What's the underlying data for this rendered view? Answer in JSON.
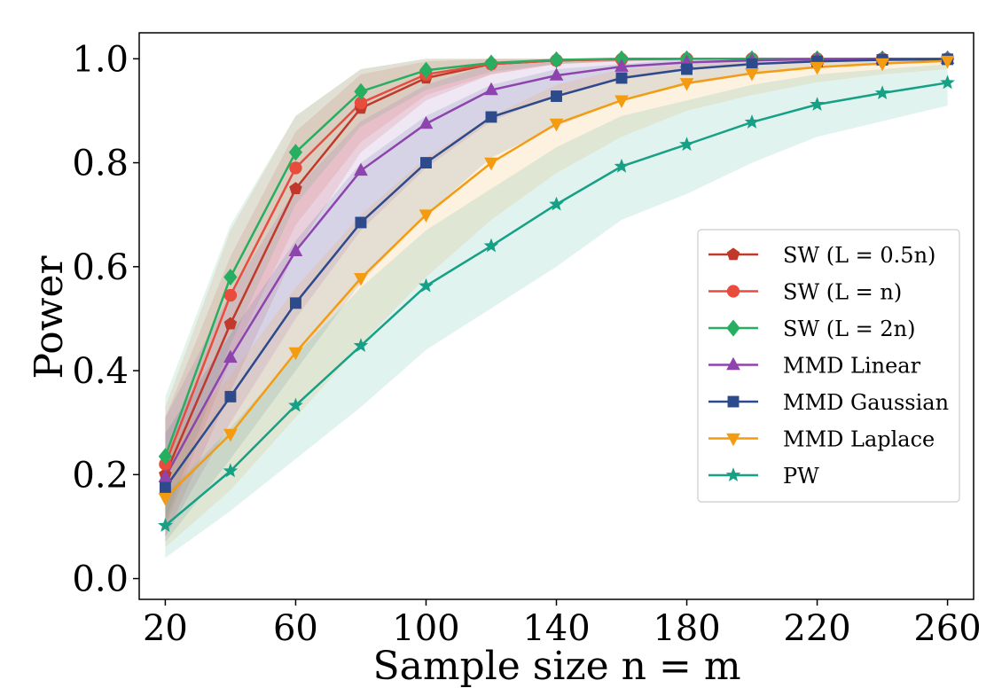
{
  "chart_data": {
    "type": "line",
    "title": "",
    "xlabel": "Sample size n = m",
    "ylabel": "Power",
    "xlim": [
      12,
      268
    ],
    "ylim": [
      -0.04,
      1.05
    ],
    "xticks": [
      20,
      60,
      100,
      140,
      180,
      220,
      260
    ],
    "xtick_labels": [
      "20",
      "60",
      "100",
      "140",
      "180",
      "220",
      "260"
    ],
    "yticks": [
      0.0,
      0.2,
      0.4,
      0.6,
      0.8,
      1.0
    ],
    "ytick_labels": [
      "0.0",
      "0.2",
      "0.4",
      "0.6",
      "0.8",
      "1.0"
    ],
    "grid": false,
    "legend_position": "center-right",
    "x": [
      20,
      40,
      60,
      80,
      100,
      120,
      140,
      160,
      180,
      200,
      220,
      240,
      260
    ],
    "series": [
      {
        "name": "SW (L = 0.5n)",
        "color": "#c0392b",
        "marker": "pentagon",
        "values": [
          0.2,
          0.49,
          0.75,
          0.905,
          0.963,
          0.99,
          0.997,
          0.999,
          1.0,
          1.0,
          1.0,
          1.0,
          1.0
        ],
        "lower": [
          0.08,
          0.36,
          0.63,
          0.82,
          0.92,
          0.97,
          0.99,
          0.995,
          0.998,
          1.0,
          1.0,
          1.0,
          1.0
        ],
        "upper": [
          0.31,
          0.62,
          0.86,
          0.97,
          0.995,
          1.0,
          1.0,
          1.0,
          1.0,
          1.0,
          1.0,
          1.0,
          1.0
        ]
      },
      {
        "name": "SW (L = n)",
        "color": "#e74c3c",
        "marker": "circle",
        "values": [
          0.22,
          0.545,
          0.79,
          0.915,
          0.97,
          0.99,
          0.997,
          0.999,
          1.0,
          1.0,
          1.0,
          1.0,
          1.0
        ],
        "lower": [
          0.1,
          0.42,
          0.68,
          0.84,
          0.93,
          0.97,
          0.99,
          0.995,
          0.998,
          1.0,
          1.0,
          1.0,
          1.0
        ],
        "upper": [
          0.33,
          0.67,
          0.89,
          0.98,
          1.0,
          1.0,
          1.0,
          1.0,
          1.0,
          1.0,
          1.0,
          1.0,
          1.0
        ]
      },
      {
        "name": "SW (L = 2n)",
        "color": "#27ae60",
        "marker": "diamond",
        "values": [
          0.235,
          0.58,
          0.82,
          0.937,
          0.978,
          0.992,
          0.998,
          1.0,
          1.0,
          1.0,
          1.0,
          1.0,
          1.0
        ],
        "lower": [
          0.11,
          0.45,
          0.72,
          0.87,
          0.94,
          0.975,
          0.99,
          0.996,
          0.998,
          1.0,
          1.0,
          1.0,
          1.0
        ],
        "upper": [
          0.35,
          0.68,
          0.89,
          0.98,
          1.0,
          1.0,
          1.0,
          1.0,
          1.0,
          1.0,
          1.0,
          1.0,
          1.0
        ]
      },
      {
        "name": "MMD Linear",
        "color": "#8e44ad",
        "marker": "triangle-up",
        "values": [
          0.195,
          0.425,
          0.63,
          0.785,
          0.875,
          0.94,
          0.968,
          0.985,
          0.993,
          0.997,
          0.999,
          1.0,
          1.0
        ],
        "lower": [
          0.08,
          0.3,
          0.5,
          0.67,
          0.79,
          0.88,
          0.93,
          0.96,
          0.98,
          0.99,
          0.995,
          0.998,
          1.0
        ],
        "upper": [
          0.31,
          0.55,
          0.75,
          0.88,
          0.95,
          0.99,
          1.0,
          1.0,
          1.0,
          1.0,
          1.0,
          1.0,
          1.0
        ]
      },
      {
        "name": "MMD Gaussian",
        "color": "#2c4a8c",
        "marker": "square",
        "values": [
          0.175,
          0.35,
          0.53,
          0.685,
          0.8,
          0.888,
          0.928,
          0.963,
          0.98,
          0.99,
          0.995,
          0.998,
          0.999
        ],
        "lower": [
          0.07,
          0.23,
          0.4,
          0.57,
          0.7,
          0.81,
          0.87,
          0.92,
          0.95,
          0.97,
          0.985,
          0.99,
          0.995
        ],
        "upper": [
          0.28,
          0.47,
          0.65,
          0.8,
          0.89,
          0.95,
          0.98,
          0.99,
          1.0,
          1.0,
          1.0,
          1.0,
          1.0
        ]
      },
      {
        "name": "MMD Laplace",
        "color": "#f39c12",
        "marker": "triangle-down",
        "values": [
          0.155,
          0.278,
          0.435,
          0.578,
          0.7,
          0.8,
          0.875,
          0.92,
          0.953,
          0.972,
          0.984,
          0.991,
          0.996
        ],
        "lower": [
          0.06,
          0.17,
          0.31,
          0.45,
          0.58,
          0.69,
          0.78,
          0.85,
          0.9,
          0.93,
          0.955,
          0.97,
          0.98
        ],
        "upper": [
          0.25,
          0.39,
          0.56,
          0.7,
          0.81,
          0.89,
          0.95,
          0.98,
          0.99,
          1.0,
          1.0,
          1.0,
          1.0
        ]
      },
      {
        "name": "PW",
        "color": "#16a085",
        "marker": "star",
        "values": [
          0.102,
          0.207,
          0.333,
          0.448,
          0.563,
          0.64,
          0.72,
          0.793,
          0.835,
          0.878,
          0.912,
          0.934,
          0.954
        ],
        "lower": [
          0.04,
          0.13,
          0.23,
          0.33,
          0.44,
          0.52,
          0.6,
          0.69,
          0.74,
          0.8,
          0.85,
          0.88,
          0.91
        ],
        "upper": [
          0.16,
          0.29,
          0.43,
          0.56,
          0.67,
          0.75,
          0.83,
          0.89,
          0.92,
          0.95,
          0.97,
          0.98,
          0.99
        ]
      }
    ]
  }
}
